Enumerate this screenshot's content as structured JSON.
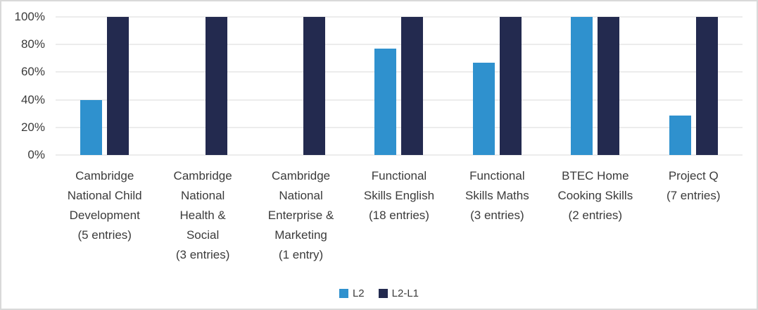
{
  "chart_data": {
    "type": "bar",
    "title": "",
    "xlabel": "",
    "ylabel": "",
    "ylim": [
      0,
      100
    ],
    "yticks": [
      "0%",
      "20%",
      "40%",
      "60%",
      "80%",
      "100%"
    ],
    "grid": true,
    "legend_position": "bottom",
    "categories": [
      "Cambridge\nNational Child\nDevelopment\n(5 entries)",
      "Cambridge\nNational\nHealth &\nSocial\n(3 entries)",
      "Cambridge\nNational\nEnterprise &\nMarketing\n(1 entry)",
      "Functional\nSkills English\n(18 entries)",
      "Functional\nSkills Maths\n(3 entries)",
      "BTEC Home\nCooking Skills\n(2 entries)",
      "Project Q\n(7 entries)"
    ],
    "series": [
      {
        "name": "L2",
        "color": "#2F91CE",
        "values": [
          40,
          0,
          0,
          77,
          67,
          100,
          28.6
        ]
      },
      {
        "name": "L2-L1",
        "color": "#232A4F",
        "values": [
          100,
          100,
          100,
          100,
          100,
          100,
          100
        ]
      }
    ]
  },
  "style": {
    "gridline_color": "#D9D9D9",
    "border_color": "#D9D9D9",
    "text_color": "#3B3B3B",
    "background": "#FFFFFF"
  }
}
